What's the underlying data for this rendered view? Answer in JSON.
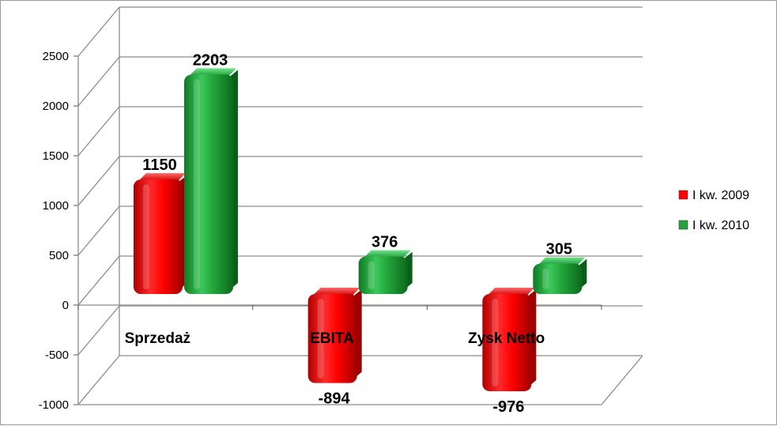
{
  "chart_data": {
    "type": "bar",
    "title": "",
    "xlabel": "",
    "ylabel": "",
    "categories": [
      "Sprzedaż",
      "EBITA",
      "Zysk Netto"
    ],
    "series": [
      {
        "name": "I kw. 2009",
        "values": [
          1150,
          -894,
          -976
        ],
        "color": "#ff0000"
      },
      {
        "name": "I kw. 2010",
        "values": [
          2203,
          376,
          305
        ],
        "color": "#22a33a"
      }
    ],
    "ylim": [
      -1000,
      2500
    ],
    "yticks": [
      "2500",
      "2000",
      "1500",
      "1000",
      "500",
      "0",
      "-500",
      "-1000"
    ],
    "grid": true,
    "legend_position": "right",
    "style": "3d-cylinder-bars"
  }
}
